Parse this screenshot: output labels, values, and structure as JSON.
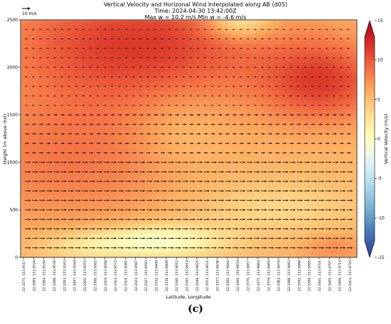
{
  "panel_label": "(c)",
  "chart_data": {
    "type": "heatmap",
    "title_lines": [
      "Vertical Velocity and Horizonal Wind Interpolated along AB (d05)",
      "Time: 2024-04-30 13:42:00Z",
      "Max w = 10.2 m/s Min w = -4.6 m/s"
    ],
    "quiver_key": "10 m/s",
    "xlabel": "Latitude, Longitude",
    "ylabel": "Height (m above msl)",
    "colorbar_label": "Vertical Velocity (m/s)",
    "colorbar_ticks": [
      15,
      10,
      5,
      0,
      -5,
      -10,
      -15
    ],
    "clim": [
      -15,
      15
    ],
    "colormap": "RdYlBu_r",
    "ylim": [
      0,
      2500
    ],
    "yticks": [
      0,
      500,
      1000,
      1500,
      2000,
      2500
    ],
    "xticks": [
      "22.3275, 113.9517",
      "22.3280, 113.9524",
      "22.3284, 113.9530",
      "22.3288, 113.9536",
      "22.3293, 113.9543",
      "22.3297, 113.9549",
      "22.3301, 113.9555",
      "22.3306, 113.9562",
      "22.3310, 113.9568",
      "22.3314, 113.9574",
      "22.3319, 113.9581",
      "22.3323, 113.9587",
      "22.3327, 113.9593",
      "22.3332, 113.9600",
      "22.3336, 113.9606",
      "22.3340, 113.9612",
      "22.3345, 113.9619",
      "22.3349, 113.9625",
      "22.3353, 113.9631",
      "22.3357, 113.9638",
      "22.3362, 113.9644",
      "22.3366, 113.9650",
      "22.3370, 113.9657",
      "22.3375, 113.9663",
      "22.3379, 113.9669",
      "22.3383, 113.9676",
      "22.3388, 113.9682",
      "22.3392, 113.9688",
      "22.3396, 113.9695",
      "22.3401, 113.9701",
      "22.3405, 113.9707",
      "22.3409, 113.9714",
      "22.3414, 113.9720"
    ],
    "w_blobs": [
      {
        "x": 0.35,
        "y": 2250,
        "sx": 0.4,
        "sy": 650,
        "w": 6.0
      },
      {
        "x": 0.9,
        "y": 1850,
        "sx": 0.18,
        "sy": 420,
        "w": 5.5
      },
      {
        "x": 0.15,
        "y": 1050,
        "sx": 0.35,
        "sy": 700,
        "w": 3.0
      },
      {
        "x": 0.65,
        "y": 2480,
        "sx": 0.1,
        "sy": 180,
        "w": -5.2
      },
      {
        "x": 0.47,
        "y": 1350,
        "sx": 0.14,
        "sy": 420,
        "w": -1.5
      },
      {
        "x": 0.42,
        "y": 170,
        "sx": 0.18,
        "sy": 170,
        "w": -6.0
      },
      {
        "x": 0.2,
        "y": 120,
        "sx": 0.15,
        "sy": 150,
        "w": -3.0
      },
      {
        "x": 0.93,
        "y": 100,
        "sx": 0.1,
        "sy": 160,
        "w": 2.0
      },
      {
        "x": 0.75,
        "y": 520,
        "sx": 0.25,
        "sy": 300,
        "w": -2.0
      }
    ],
    "w_base": 5.5,
    "wind_levels_m": [
      2400,
      2300,
      2200,
      2100,
      2000,
      1900,
      1800,
      1700,
      1600,
      1500,
      1400,
      1300,
      1200,
      1100,
      1000,
      900,
      800,
      700,
      600,
      500,
      400,
      300,
      200,
      100
    ],
    "wind_note": "westerly wind vectors; weaker aloft, stronger at low levels"
  }
}
